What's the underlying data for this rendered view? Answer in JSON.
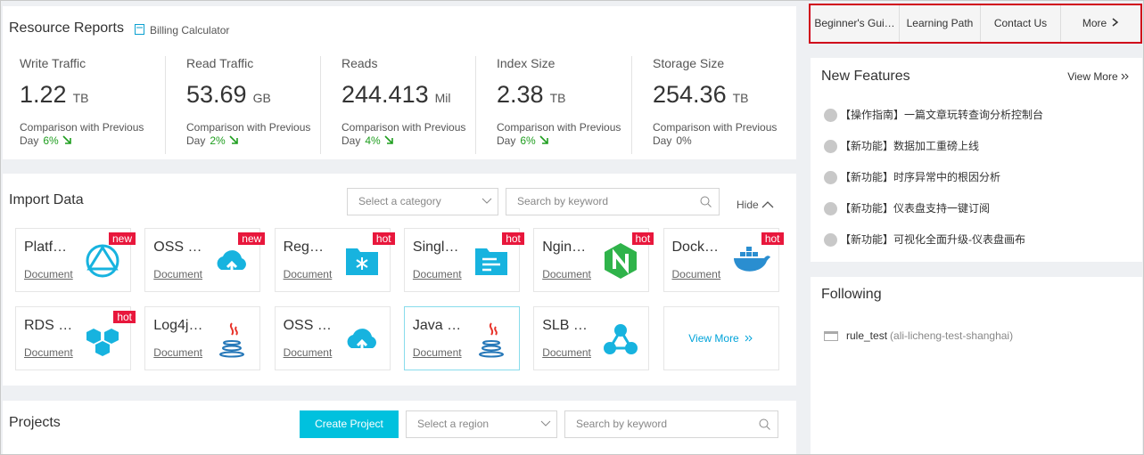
{
  "resource_reports": {
    "title": "Resource Reports",
    "billing_link": "Billing Calculator",
    "metrics": [
      {
        "label": "Write Traffic",
        "value": "1.22",
        "unit": "TB",
        "comparison": "Comparison with Previous Day",
        "change": "6%",
        "trend": "down"
      },
      {
        "label": "Read Traffic",
        "value": "53.69",
        "unit": "GB",
        "comparison": "Comparison with Previous Day",
        "change": "2%",
        "trend": "down"
      },
      {
        "label": "Reads",
        "value": "244.413",
        "unit": "Mil",
        "comparison": "Comparison with Previous Day",
        "change": "4%",
        "trend": "down"
      },
      {
        "label": "Index Size",
        "value": "2.38",
        "unit": "TB",
        "comparison": "Comparison with Previous Day",
        "change": "6%",
        "trend": "down"
      },
      {
        "label": "Storage Size",
        "value": "254.36",
        "unit": "TB",
        "comparison": "Comparison with Previous Day",
        "change": "0%"
      }
    ]
  },
  "import_data": {
    "title": "Import Data",
    "category_placeholder": "Select a category",
    "search_placeholder": "Search by keyword",
    "toggle": "Hide",
    "cards": [
      {
        "name": "Platf…",
        "link": "Document",
        "badge": "new"
      },
      {
        "name": "OSS …",
        "link": "Document",
        "badge": "new"
      },
      {
        "name": "Reg…",
        "link": "Document",
        "badge": "hot"
      },
      {
        "name": "Singl…",
        "link": "Document",
        "badge": "hot"
      },
      {
        "name": "Ngin…",
        "link": "Document",
        "badge": "hot"
      },
      {
        "name": "Dock…",
        "link": "Document",
        "badge": "hot"
      },
      {
        "name": "RDS …",
        "link": "Document",
        "badge": "hot"
      },
      {
        "name": "Log4j…",
        "link": "Document"
      },
      {
        "name": "OSS …",
        "link": "Document"
      },
      {
        "name": "Java …",
        "link": "Document"
      },
      {
        "name": "SLB …",
        "link": "Document"
      }
    ],
    "view_more": "View More"
  },
  "projects": {
    "title": "Projects",
    "create_button": "Create Project",
    "region_placeholder": "Select a region",
    "search_placeholder": "Search by keyword"
  },
  "top_tabs": [
    "Beginner's Gui…",
    "Learning Path",
    "Contact Us",
    "More"
  ],
  "new_features": {
    "title": "New Features",
    "view_more": "View More",
    "items": [
      "【操作指南】一篇文章玩转查询分析控制台",
      "【新功能】数据加工重磅上线",
      "【新功能】时序异常中的根因分析",
      "【新功能】仪表盘支持一键订阅",
      "【新功能】可视化全面升级-仪表盘画布"
    ]
  },
  "following": {
    "title": "Following",
    "items": [
      {
        "name": "rule_test",
        "detail": "(ali-licheng-test-shanghai)"
      }
    ]
  }
}
